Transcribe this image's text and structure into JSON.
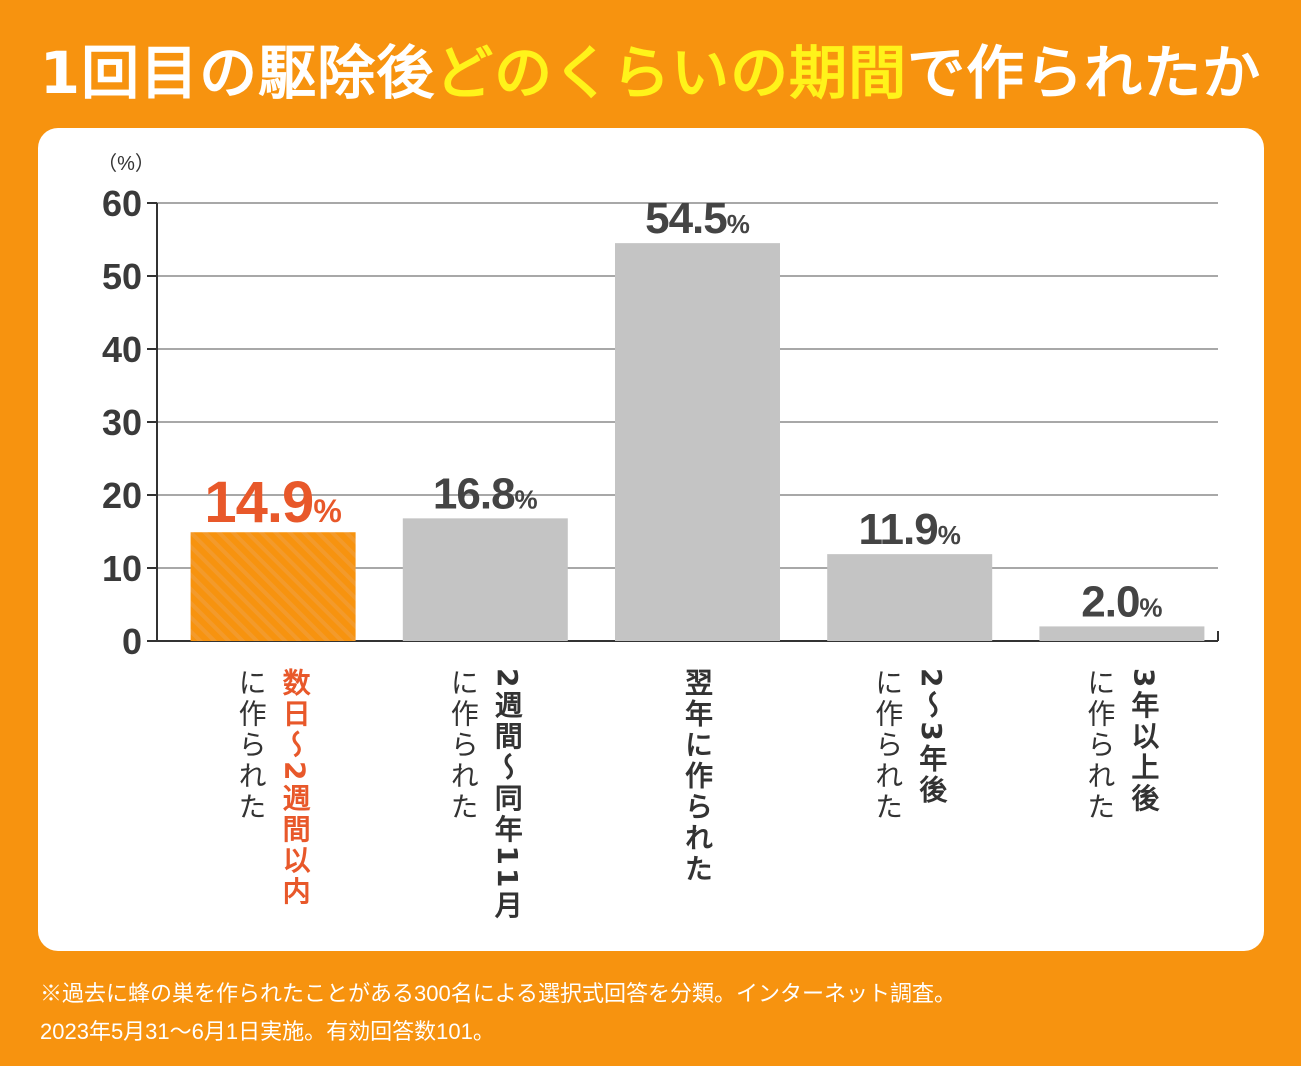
{
  "title": {
    "part1": "1回目の駆除後",
    "highlight": "どのくらいの期間",
    "part2": "で作られたか"
  },
  "colors": {
    "background": "#f7930f",
    "highlight_text": "#fff31a",
    "bar_default": "#c4c4c4",
    "bar_highlight": "#f7930f",
    "label_highlight": "#e8582a",
    "label_default": "#444444"
  },
  "chart_data": {
    "type": "bar",
    "yunit": "（%）",
    "ylim": [
      0,
      60
    ],
    "yticks": [
      0,
      10,
      20,
      30,
      40,
      50,
      60
    ],
    "grid": true,
    "highlight_index": 0,
    "value_suffix": "%",
    "categories": [
      {
        "label_lines": [
          "数日〜2週間以内",
          "に作られた"
        ],
        "value": 14.9,
        "value_text": "14.9"
      },
      {
        "label_lines": [
          "2週間〜同年11月",
          "に作られた"
        ],
        "value": 16.8,
        "value_text": "16.8"
      },
      {
        "label_lines": [
          "翌年に作られた"
        ],
        "value": 54.5,
        "value_text": "54.5"
      },
      {
        "label_lines": [
          "2〜3年後",
          "に作られた"
        ],
        "value": 11.9,
        "value_text": "11.9"
      },
      {
        "label_lines": [
          "3年以上後",
          "に作られた"
        ],
        "value": 2.0,
        "value_text": "2.0"
      }
    ]
  },
  "footnote": {
    "line1": "※過去に蜂の巣を作られたことがある300名による選択式回答を分類。インターネット調査。",
    "line2": "2023年5月31〜6月1日実施。有効回答数101。"
  }
}
